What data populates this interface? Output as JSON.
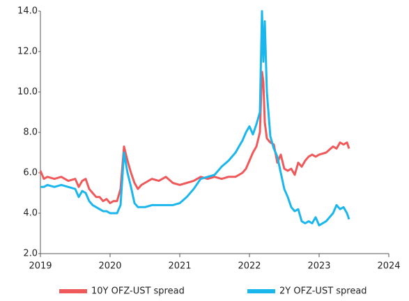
{
  "chart_data": {
    "type": "line",
    "x": [
      2019.0,
      2019.05,
      2019.1,
      2019.2,
      2019.3,
      2019.4,
      2019.5,
      2019.55,
      2019.6,
      2019.65,
      2019.7,
      2019.75,
      2019.8,
      2019.85,
      2019.9,
      2019.95,
      2020.0,
      2020.05,
      2020.1,
      2020.15,
      2020.2,
      2020.25,
      2020.3,
      2020.35,
      2020.4,
      2020.45,
      2020.5,
      2020.6,
      2020.7,
      2020.8,
      2020.9,
      2021.0,
      2021.1,
      2021.2,
      2021.3,
      2021.4,
      2021.5,
      2021.6,
      2021.7,
      2021.8,
      2021.85,
      2021.9,
      2021.95,
      2022.0,
      2022.05,
      2022.1,
      2022.15,
      2022.18,
      2022.2,
      2022.22,
      2022.25,
      2022.3,
      2022.35,
      2022.4,
      2022.45,
      2022.5,
      2022.55,
      2022.6,
      2022.65,
      2022.7,
      2022.75,
      2022.8,
      2022.85,
      2022.9,
      2022.95,
      2023.0,
      2023.1,
      2023.2,
      2023.25,
      2023.3,
      2023.35,
      2023.4,
      2023.43
    ],
    "series": [
      {
        "name": "10Y OFZ-UST spread",
        "color": "#f0595a",
        "values": [
          6.1,
          5.7,
          5.8,
          5.7,
          5.8,
          5.6,
          5.7,
          5.3,
          5.6,
          5.7,
          5.2,
          5.0,
          4.8,
          4.8,
          4.6,
          4.7,
          4.5,
          4.6,
          4.6,
          5.2,
          7.3,
          6.6,
          6.0,
          5.5,
          5.2,
          5.4,
          5.5,
          5.7,
          5.6,
          5.8,
          5.5,
          5.4,
          5.5,
          5.6,
          5.8,
          5.7,
          5.8,
          5.7,
          5.8,
          5.8,
          5.9,
          6.0,
          6.2,
          6.6,
          7.0,
          7.3,
          8.0,
          11.0,
          10.5,
          8.5,
          7.7,
          7.5,
          7.4,
          6.5,
          6.9,
          6.2,
          6.1,
          6.2,
          5.9,
          6.5,
          6.3,
          6.6,
          6.8,
          6.9,
          6.8,
          6.9,
          7.0,
          7.3,
          7.2,
          7.5,
          7.4,
          7.5,
          7.2
        ]
      },
      {
        "name": "2Y OFZ-UST spread",
        "color": "#1bb6ec",
        "values": [
          5.3,
          5.3,
          5.4,
          5.3,
          5.4,
          5.3,
          5.2,
          4.8,
          5.1,
          5.0,
          4.6,
          4.4,
          4.3,
          4.2,
          4.1,
          4.1,
          4.0,
          4.0,
          4.0,
          4.4,
          7.0,
          6.0,
          5.3,
          4.5,
          4.3,
          4.3,
          4.3,
          4.4,
          4.4,
          4.4,
          4.4,
          4.5,
          4.8,
          5.2,
          5.7,
          5.8,
          5.9,
          6.3,
          6.6,
          7.0,
          7.3,
          7.6,
          8.0,
          8.3,
          7.9,
          8.4,
          9.0,
          14.0,
          11.5,
          13.5,
          10.0,
          7.8,
          7.2,
          6.8,
          6.0,
          5.2,
          4.8,
          4.3,
          4.1,
          4.2,
          3.6,
          3.5,
          3.6,
          3.5,
          3.8,
          3.4,
          3.6,
          4.0,
          4.4,
          4.2,
          4.3,
          4.0,
          3.7
        ]
      }
    ],
    "xlim": [
      2019,
      2024
    ],
    "xticks": [
      2019,
      2020,
      2021,
      2022,
      2023,
      2024
    ],
    "ylim": [
      2,
      14
    ],
    "yticks": [
      {
        "value": 2,
        "label": "2.0"
      },
      {
        "value": 4,
        "label": "4.0"
      },
      {
        "value": 6,
        "label": "6.0"
      },
      {
        "value": 8,
        "label": "8.0"
      },
      {
        "value": 10,
        "label": "10.0"
      },
      {
        "value": 12,
        "label": "12.0"
      },
      {
        "value": 14,
        "label": "14.0"
      }
    ],
    "grid": false,
    "legend": "bottom"
  }
}
